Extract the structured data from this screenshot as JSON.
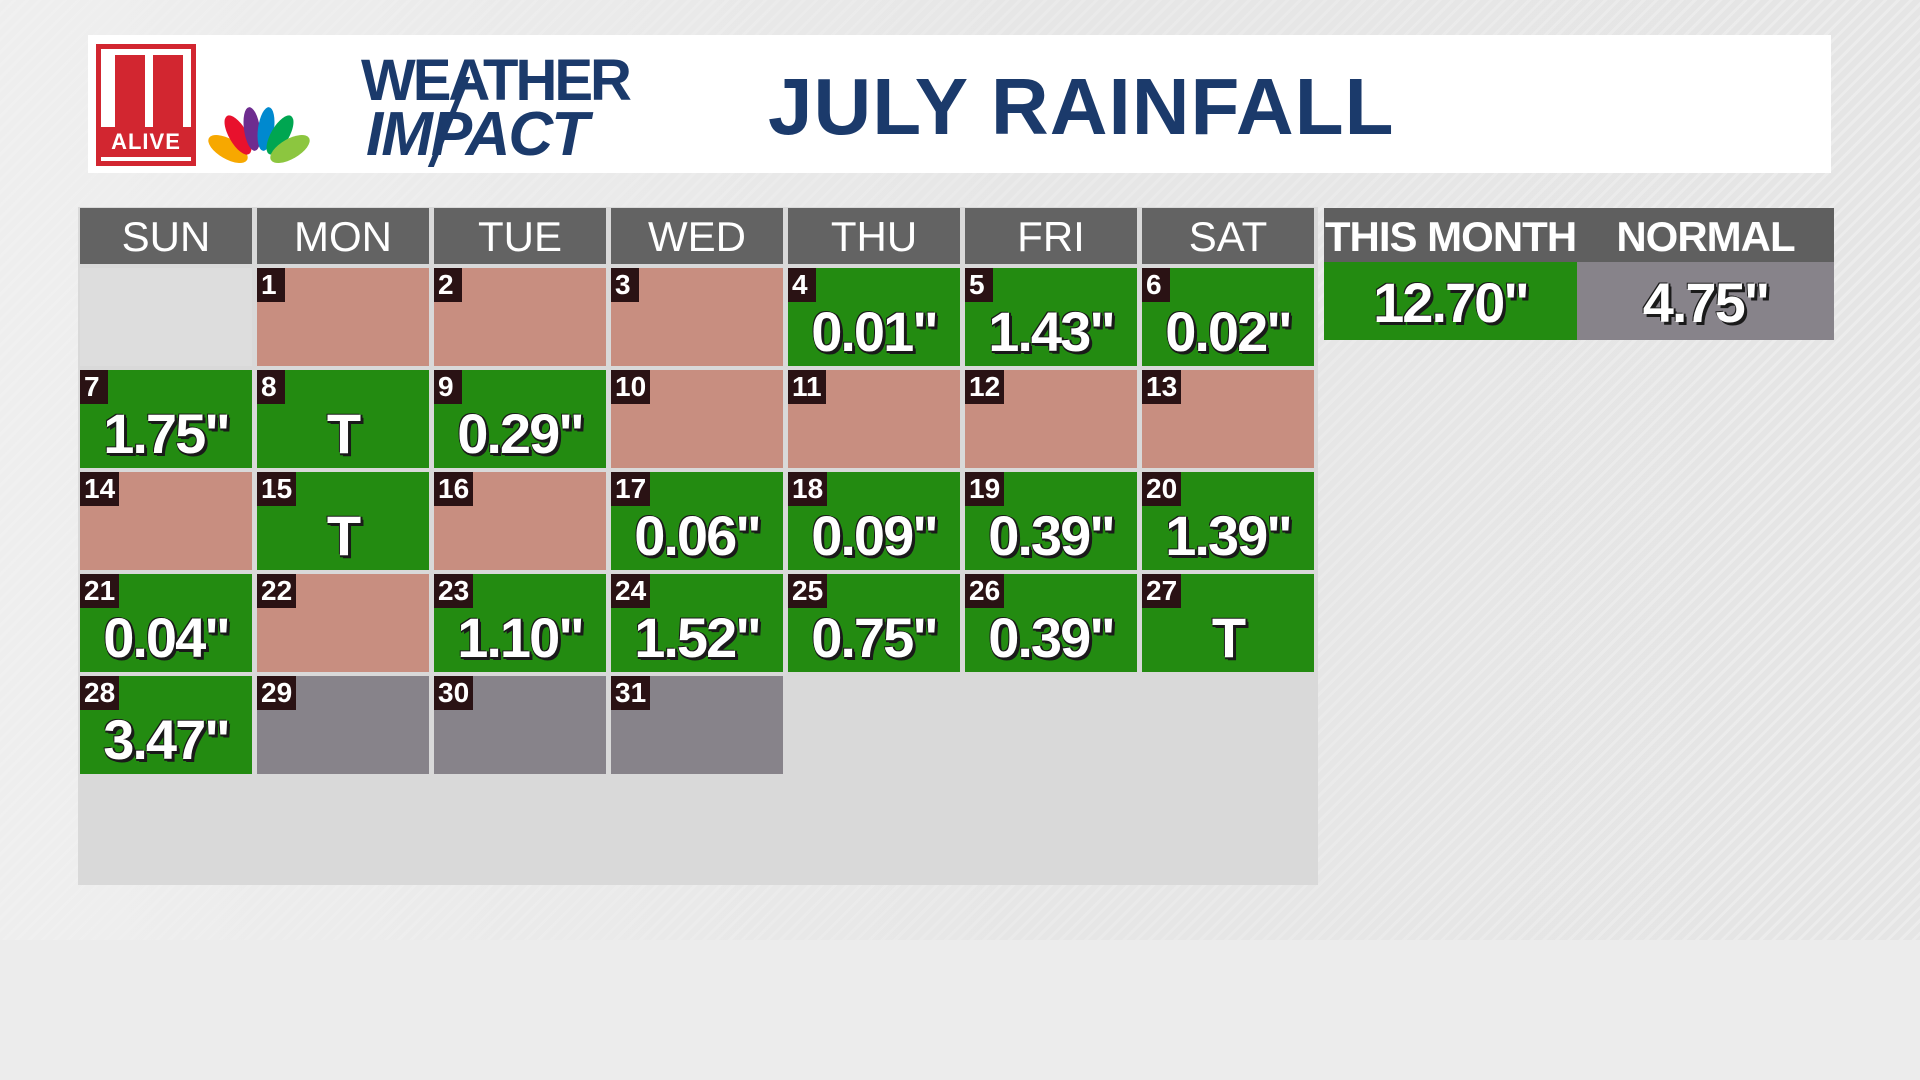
{
  "header": {
    "station_logo_text": "ALIVE",
    "brand_line1": "WEATHER",
    "brand_line2": "IMPACT",
    "title": "JULY RAINFALL"
  },
  "calendar": {
    "days": [
      "SUN",
      "MON",
      "TUE",
      "WED",
      "THU",
      "FRI",
      "SAT"
    ],
    "first_weekday_index": 1,
    "entries": [
      {
        "date": "1",
        "amount": "",
        "status": "dry"
      },
      {
        "date": "2",
        "amount": "",
        "status": "dry"
      },
      {
        "date": "3",
        "amount": "",
        "status": "dry"
      },
      {
        "date": "4",
        "amount": "0.01\"",
        "status": "rain"
      },
      {
        "date": "5",
        "amount": "1.43\"",
        "status": "rain"
      },
      {
        "date": "6",
        "amount": "0.02\"",
        "status": "rain"
      },
      {
        "date": "7",
        "amount": "1.75\"",
        "status": "rain"
      },
      {
        "date": "8",
        "amount": "T",
        "status": "rain"
      },
      {
        "date": "9",
        "amount": "0.29\"",
        "status": "rain"
      },
      {
        "date": "10",
        "amount": "",
        "status": "dry"
      },
      {
        "date": "11",
        "amount": "",
        "status": "dry"
      },
      {
        "date": "12",
        "amount": "",
        "status": "dry"
      },
      {
        "date": "13",
        "amount": "",
        "status": "dry"
      },
      {
        "date": "14",
        "amount": "",
        "status": "dry"
      },
      {
        "date": "15",
        "amount": "T",
        "status": "rain"
      },
      {
        "date": "16",
        "amount": "",
        "status": "dry"
      },
      {
        "date": "17",
        "amount": "0.06\"",
        "status": "rain"
      },
      {
        "date": "18",
        "amount": "0.09\"",
        "status": "rain"
      },
      {
        "date": "19",
        "amount": "0.39\"",
        "status": "rain"
      },
      {
        "date": "20",
        "amount": "1.39\"",
        "status": "rain"
      },
      {
        "date": "21",
        "amount": "0.04\"",
        "status": "rain"
      },
      {
        "date": "22",
        "amount": "",
        "status": "dry"
      },
      {
        "date": "23",
        "amount": "1.10\"",
        "status": "rain"
      },
      {
        "date": "24",
        "amount": "1.52\"",
        "status": "rain"
      },
      {
        "date": "25",
        "amount": "0.75\"",
        "status": "rain"
      },
      {
        "date": "26",
        "amount": "0.39\"",
        "status": "rain"
      },
      {
        "date": "27",
        "amount": "T",
        "status": "rain"
      },
      {
        "date": "28",
        "amount": "3.47\"",
        "status": "rain"
      },
      {
        "date": "29",
        "amount": "",
        "status": "future"
      },
      {
        "date": "30",
        "amount": "",
        "status": "future"
      },
      {
        "date": "31",
        "amount": "",
        "status": "future"
      }
    ],
    "colors": {
      "rain": "#238b11",
      "dry": "#c88e80",
      "future": "#87838a",
      "header": "#636363",
      "date_tag": "#2a1214"
    }
  },
  "summary": {
    "this_month_label": "THIS MONTH",
    "this_month_value": "12.70\"",
    "normal_label": "NORMAL",
    "normal_value": "4.75\"",
    "this_month_color": "#238b11",
    "normal_color": "#87838a"
  },
  "colors": {
    "title": "#1b3a6b",
    "station_red": "#d22630"
  }
}
